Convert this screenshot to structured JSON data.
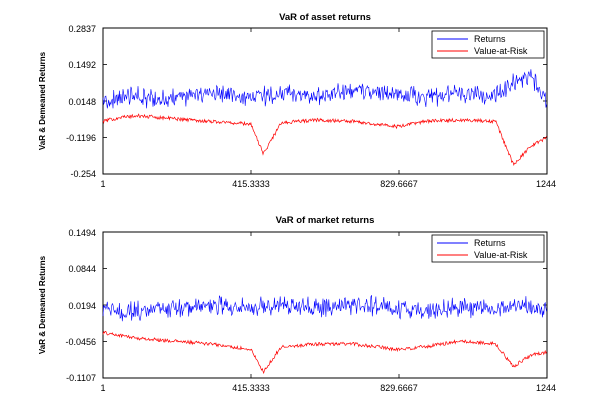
{
  "chart_data": [
    {
      "type": "line",
      "title": "VaR of asset returns",
      "xlabel": "",
      "ylabel": "VaR & Demeaned Returns",
      "xlim": [
        1,
        1244
      ],
      "ylim": [
        -0.254,
        0.2837
      ],
      "x_ticks": [
        "1",
        "415.3333",
        "829.6667",
        "1244"
      ],
      "y_ticks": [
        "0.2837",
        "0.1492",
        "0.0148",
        "-0.1196",
        "-0.254"
      ],
      "legend_position": "top-right",
      "n_points": 1244,
      "series": [
        {
          "name": "Returns",
          "color": "#0000ff",
          "x": [
            1,
            100,
            200,
            300,
            415,
            500,
            600,
            700,
            829,
            900,
            1000,
            1100,
            1150,
            1200,
            1244
          ],
          "values": [
            0.02,
            0.03,
            0.02,
            0.05,
            0.03,
            0.04,
            0.03,
            0.05,
            0.04,
            0.03,
            0.04,
            0.03,
            0.09,
            0.1,
            0.02
          ]
        },
        {
          "name": "Value-at-Risk",
          "color": "#ff0000",
          "x": [
            1,
            50,
            100,
            200,
            300,
            415,
            450,
            500,
            600,
            700,
            829,
            900,
            1000,
            1100,
            1150,
            1200,
            1244
          ],
          "values": [
            -0.06,
            -0.045,
            -0.04,
            -0.05,
            -0.06,
            -0.07,
            -0.18,
            -0.065,
            -0.055,
            -0.06,
            -0.08,
            -0.06,
            -0.055,
            -0.06,
            -0.22,
            -0.15,
            -0.12
          ]
        }
      ]
    },
    {
      "type": "line",
      "title": "VaR of market returns",
      "xlabel": "",
      "ylabel": "VaR & Demeaned Returns",
      "xlim": [
        1,
        1244
      ],
      "ylim": [
        -0.1107,
        0.1494
      ],
      "x_ticks": [
        "1",
        "415.3333",
        "829.6667",
        "1244"
      ],
      "y_ticks": [
        "0.1494",
        "0.0844",
        "0.0194",
        "-0.0456",
        "-0.1107"
      ],
      "legend_position": "top-right",
      "n_points": 1244,
      "series": [
        {
          "name": "Returns",
          "color": "#0000ff",
          "x": [
            1,
            100,
            200,
            300,
            415,
            500,
            600,
            700,
            829,
            900,
            1000,
            1100,
            1150,
            1200,
            1244
          ],
          "values": [
            0.01,
            0.01,
            0.015,
            0.02,
            0.015,
            0.02,
            0.015,
            0.02,
            0.015,
            0.01,
            0.015,
            0.01,
            0.02,
            0.015,
            0.01
          ]
        },
        {
          "name": "Value-at-Risk",
          "color": "#ff0000",
          "x": [
            1,
            50,
            100,
            200,
            300,
            415,
            450,
            500,
            600,
            700,
            829,
            900,
            1000,
            1100,
            1150,
            1200,
            1244
          ],
          "values": [
            -0.03,
            -0.035,
            -0.04,
            -0.045,
            -0.05,
            -0.06,
            -0.1,
            -0.055,
            -0.05,
            -0.05,
            -0.06,
            -0.055,
            -0.045,
            -0.05,
            -0.09,
            -0.07,
            -0.065
          ]
        }
      ]
    }
  ]
}
